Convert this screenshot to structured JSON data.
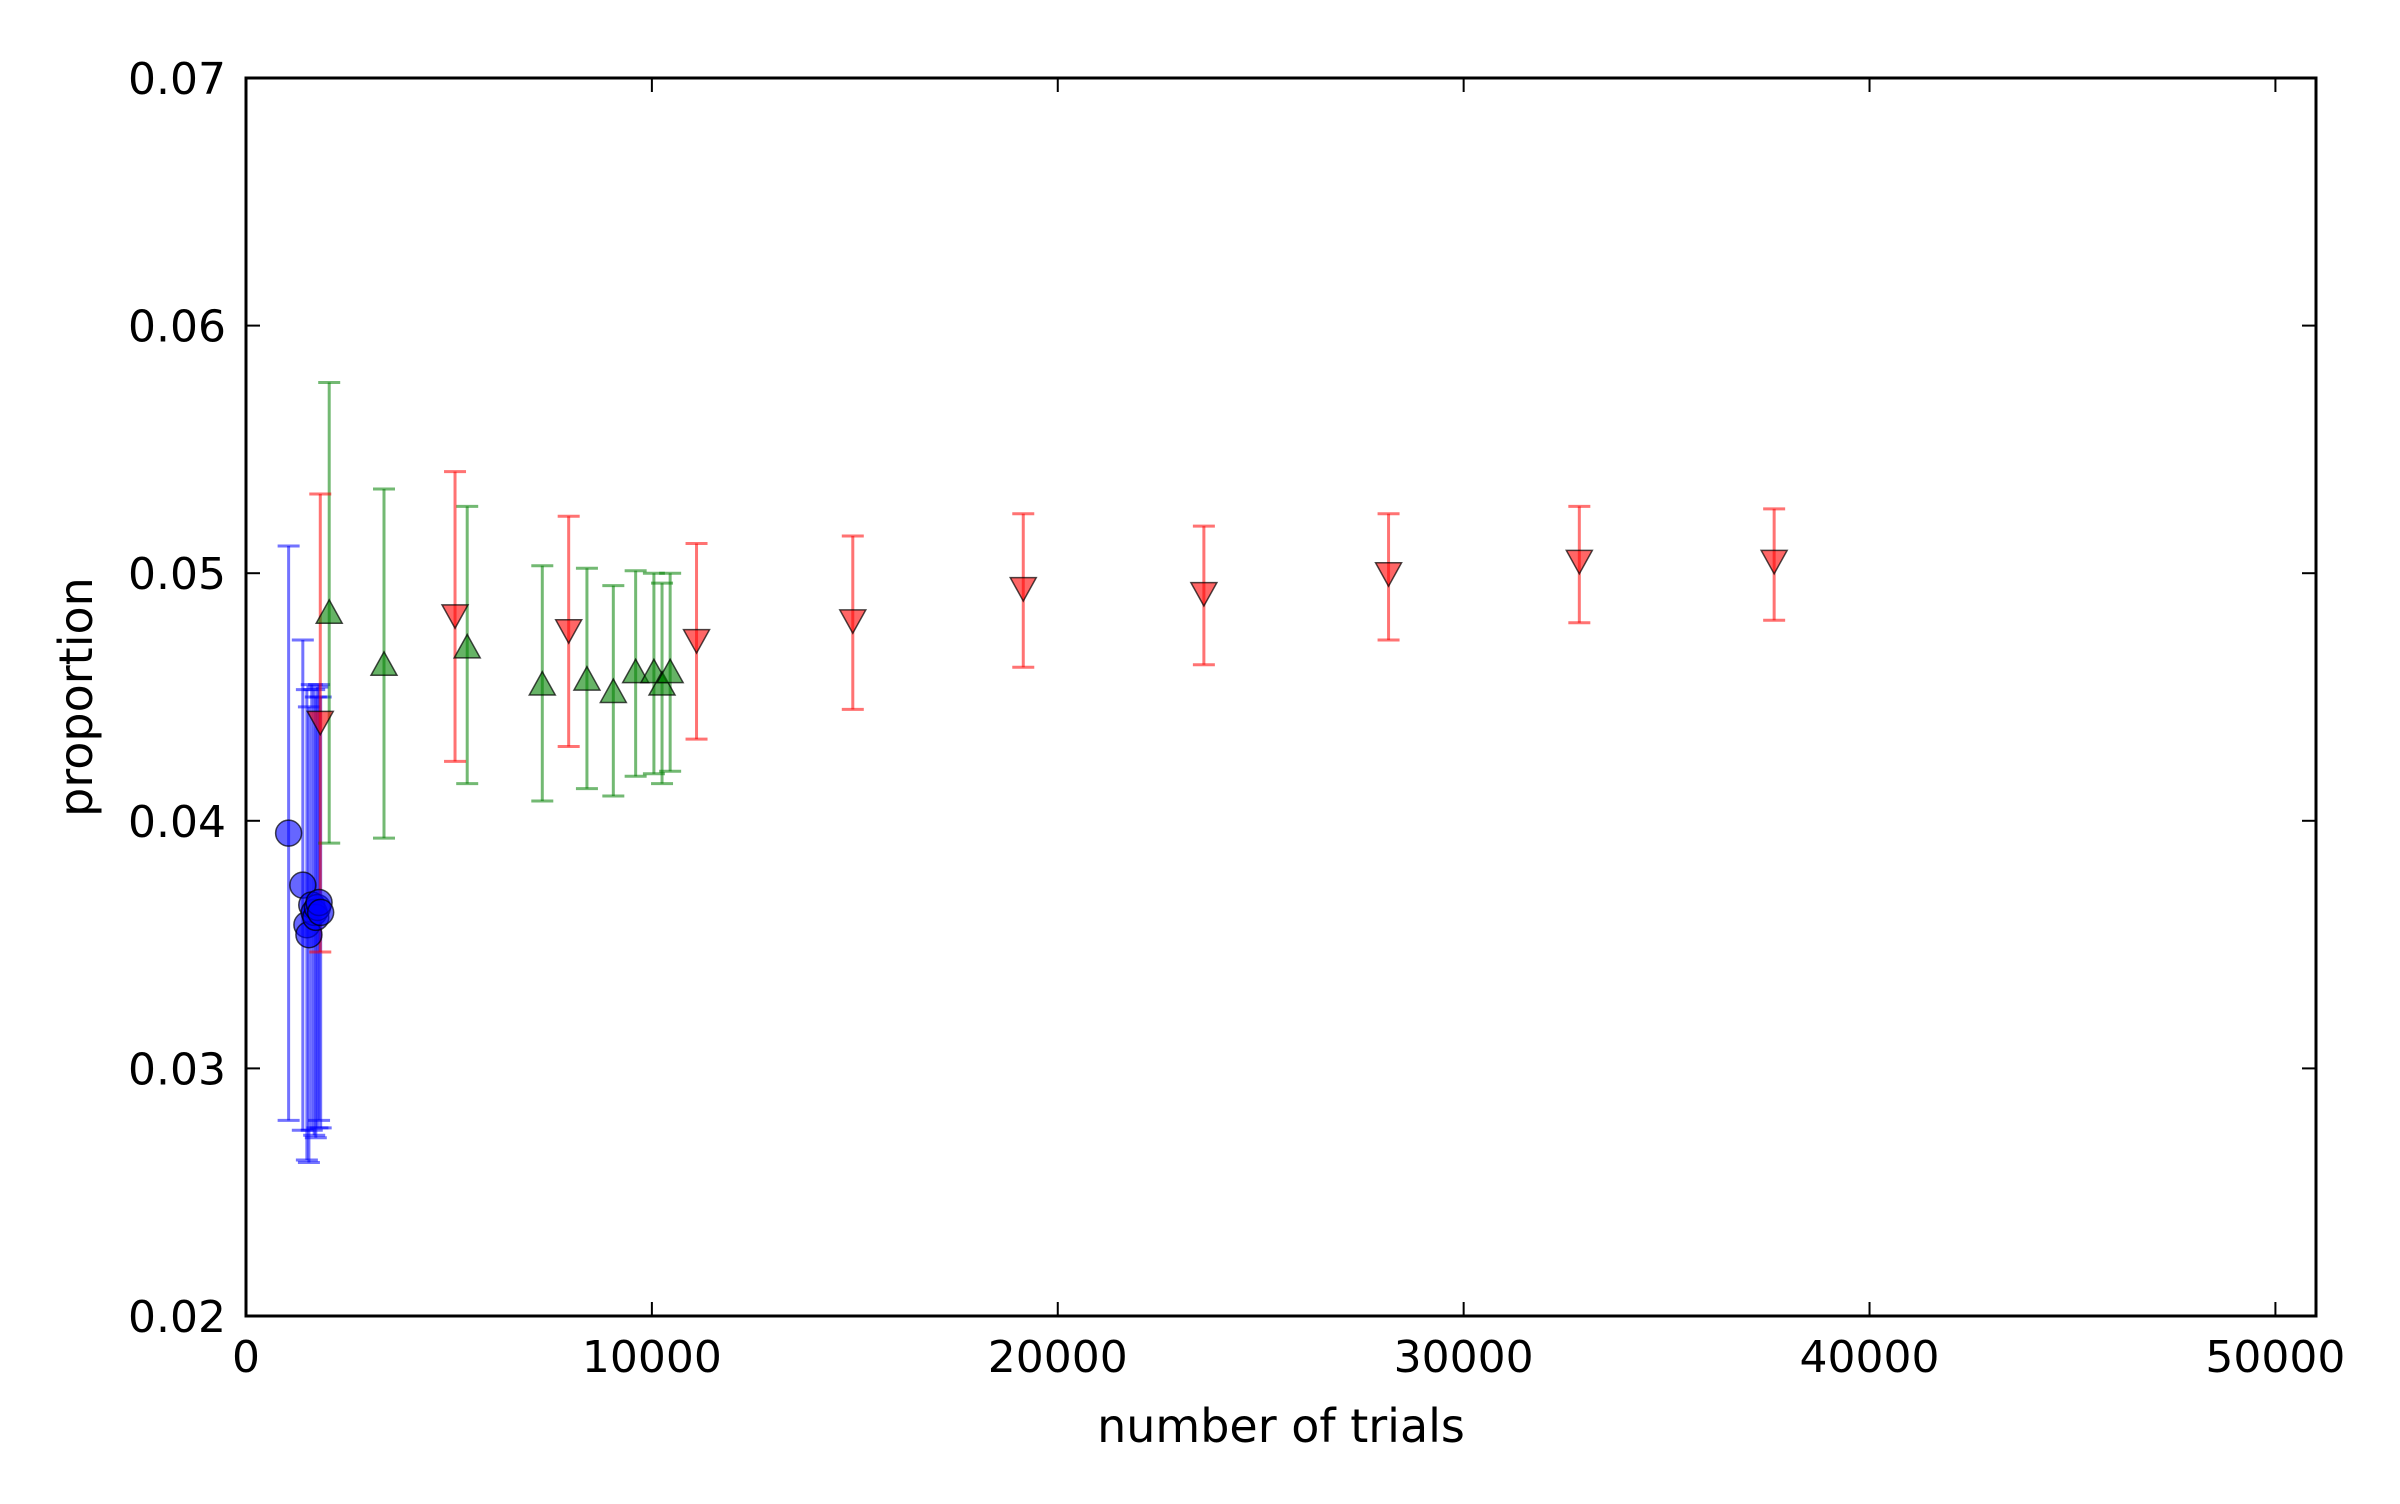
{
  "chart_data": {
    "type": "scatter",
    "title": "",
    "xlabel": "number of trials",
    "ylabel": "proportion",
    "xlim": [
      0,
      51000
    ],
    "ylim": [
      0.02,
      0.07
    ],
    "xticks": [
      0,
      10000,
      20000,
      30000,
      40000,
      50000
    ],
    "xtick_labels": [
      "0",
      "10000",
      "20000",
      "30000",
      "40000",
      "50000"
    ],
    "yticks": [
      0.02,
      0.03,
      0.04,
      0.05,
      0.06,
      0.07
    ],
    "ytick_labels": [
      "0.02",
      "0.03",
      "0.04",
      "0.05",
      "0.06",
      "0.07"
    ],
    "grid": false,
    "legend": "none",
    "error_bars": true,
    "series": [
      {
        "marker": "circle",
        "color": "#0000ff",
        "points": [
          {
            "x": 1050,
            "y": 0.0395,
            "lo": 0.0279,
            "hi": 0.0511
          },
          {
            "x": 1400,
            "y": 0.0374,
            "lo": 0.0275,
            "hi": 0.0473
          },
          {
            "x": 1500,
            "y": 0.0358,
            "lo": 0.0263,
            "hi": 0.0453
          },
          {
            "x": 1550,
            "y": 0.0354,
            "lo": 0.0262,
            "hi": 0.0446
          },
          {
            "x": 1620,
            "y": 0.0366,
            "lo": 0.0275,
            "hi": 0.0455
          },
          {
            "x": 1680,
            "y": 0.0363,
            "lo": 0.0273,
            "hi": 0.0453
          },
          {
            "x": 1720,
            "y": 0.0361,
            "lo": 0.0272,
            "hi": 0.045
          },
          {
            "x": 1760,
            "y": 0.0365,
            "lo": 0.0276,
            "hi": 0.0454
          },
          {
            "x": 1800,
            "y": 0.0367,
            "lo": 0.0279,
            "hi": 0.0455
          },
          {
            "x": 1840,
            "y": 0.0363,
            "lo": 0.0276,
            "hi": 0.045
          }
        ]
      },
      {
        "marker": "triangle-up",
        "color": "#008000",
        "points": [
          {
            "x": 2050,
            "y": 0.0484,
            "lo": 0.0391,
            "hi": 0.0577
          },
          {
            "x": 3400,
            "y": 0.0463,
            "lo": 0.0393,
            "hi": 0.0534
          },
          {
            "x": 5450,
            "y": 0.047,
            "lo": 0.0415,
            "hi": 0.0527
          },
          {
            "x": 7300,
            "y": 0.0455,
            "lo": 0.0408,
            "hi": 0.0503
          },
          {
            "x": 8400,
            "y": 0.0457,
            "lo": 0.0413,
            "hi": 0.0502
          },
          {
            "x": 9050,
            "y": 0.0452,
            "lo": 0.041,
            "hi": 0.0495
          },
          {
            "x": 9600,
            "y": 0.046,
            "lo": 0.0418,
            "hi": 0.0501
          },
          {
            "x": 10050,
            "y": 0.046,
            "lo": 0.0419,
            "hi": 0.05
          },
          {
            "x": 10250,
            "y": 0.0455,
            "lo": 0.0415,
            "hi": 0.0496
          },
          {
            "x": 10450,
            "y": 0.046,
            "lo": 0.042,
            "hi": 0.05
          }
        ]
      },
      {
        "marker": "triangle-down",
        "color": "#ff0000",
        "points": [
          {
            "x": 1830,
            "y": 0.044,
            "lo": 0.0347,
            "hi": 0.0532
          },
          {
            "x": 5150,
            "y": 0.0483,
            "lo": 0.0424,
            "hi": 0.0541
          },
          {
            "x": 7950,
            "y": 0.0477,
            "lo": 0.043,
            "hi": 0.0523
          },
          {
            "x": 11100,
            "y": 0.0473,
            "lo": 0.0433,
            "hi": 0.0512
          },
          {
            "x": 14950,
            "y": 0.0481,
            "lo": 0.0445,
            "hi": 0.0515
          },
          {
            "x": 19150,
            "y": 0.0494,
            "lo": 0.0462,
            "hi": 0.0524
          },
          {
            "x": 23600,
            "y": 0.0492,
            "lo": 0.0463,
            "hi": 0.0519
          },
          {
            "x": 28150,
            "y": 0.05,
            "lo": 0.0473,
            "hi": 0.0524
          },
          {
            "x": 32850,
            "y": 0.0505,
            "lo": 0.048,
            "hi": 0.0527
          },
          {
            "x": 37650,
            "y": 0.0505,
            "lo": 0.0481,
            "hi": 0.0526
          }
        ]
      }
    ]
  }
}
